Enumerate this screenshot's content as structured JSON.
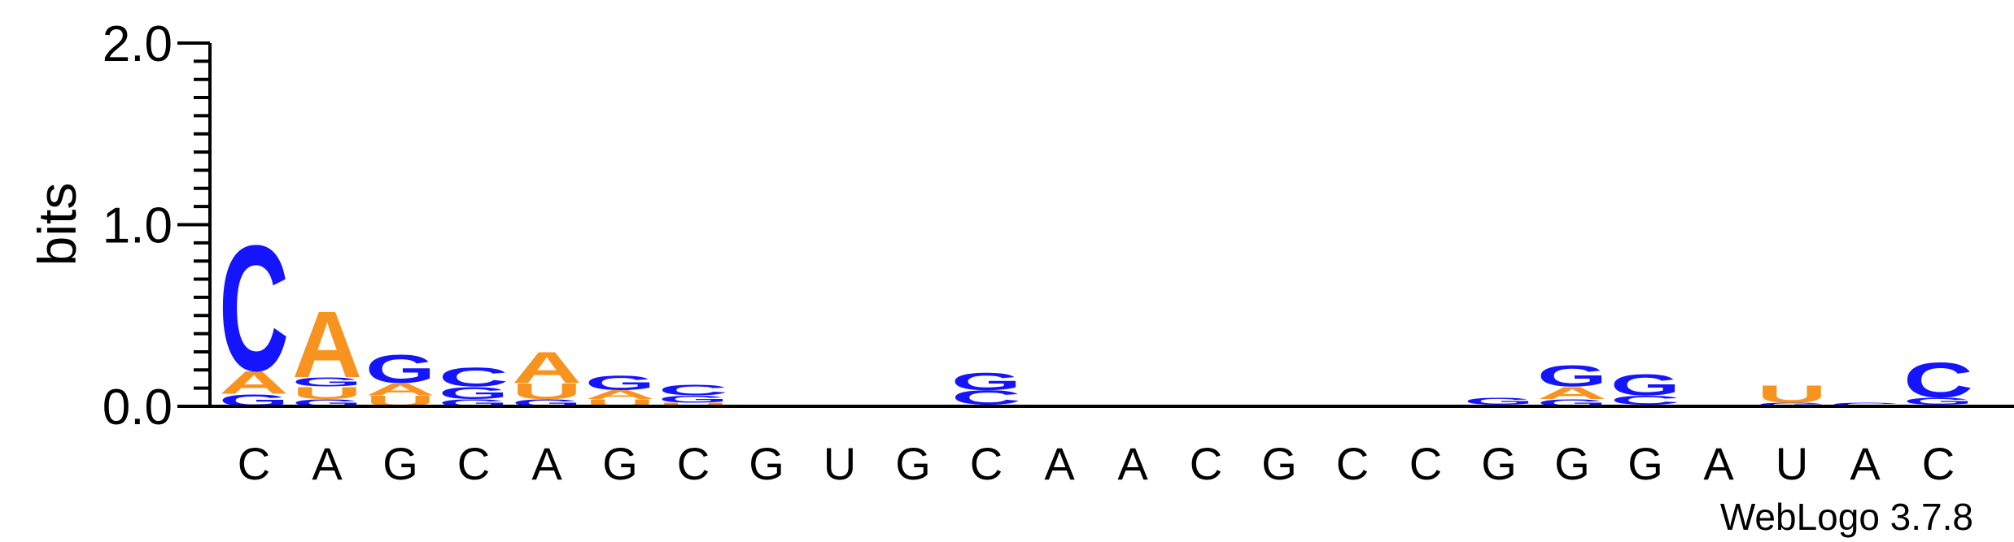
{
  "colors": {
    "A": "#f7931e",
    "C": "#1414ff",
    "G": "#1414ff",
    "U": "#f7931e",
    "axis": "#000000"
  },
  "credit": "WebLogo 3.7.8",
  "chart_data": {
    "type": "sequence-logo",
    "ylabel": "bits",
    "ylim": [
      0,
      2.0
    ],
    "yticks": [
      {
        "value": 0.0,
        "label": "0.0"
      },
      {
        "value": 1.0,
        "label": "1.0"
      },
      {
        "value": 2.0,
        "label": "2.0"
      }
    ],
    "minor_tick_step": 0.1,
    "positions": [
      {
        "label": "C",
        "stack": [
          {
            "letter": "G",
            "bits": 0.07
          },
          {
            "letter": "A",
            "bits": 0.13
          },
          {
            "letter": "C",
            "bits": 0.72
          }
        ]
      },
      {
        "label": "A",
        "stack": [
          {
            "letter": "G",
            "bits": 0.04
          },
          {
            "letter": "U",
            "bits": 0.07
          },
          {
            "letter": "G",
            "bits": 0.05
          },
          {
            "letter": "A",
            "bits": 0.38
          }
        ]
      },
      {
        "label": "G",
        "stack": [
          {
            "letter": "U",
            "bits": 0.06
          },
          {
            "letter": "A",
            "bits": 0.07
          },
          {
            "letter": "G",
            "bits": 0.16
          }
        ]
      },
      {
        "label": "C",
        "stack": [
          {
            "letter": "G",
            "bits": 0.04
          },
          {
            "letter": "G",
            "bits": 0.07
          },
          {
            "letter": "C",
            "bits": 0.11
          }
        ]
      },
      {
        "label": "A",
        "stack": [
          {
            "letter": "G",
            "bits": 0.04
          },
          {
            "letter": "U",
            "bits": 0.09
          },
          {
            "letter": "A",
            "bits": 0.18
          }
        ]
      },
      {
        "label": "G",
        "stack": [
          {
            "letter": "U",
            "bits": 0.04
          },
          {
            "letter": "A",
            "bits": 0.05
          },
          {
            "letter": "G",
            "bits": 0.08
          }
        ]
      },
      {
        "label": "C",
        "stack": [
          {
            "letter": "U",
            "bits": 0.02
          },
          {
            "letter": "G",
            "bits": 0.04
          },
          {
            "letter": "C",
            "bits": 0.06
          }
        ]
      },
      {
        "label": "G",
        "stack": [
          {
            "letter": "A",
            "bits": 0.01
          }
        ]
      },
      {
        "label": "U",
        "stack": [
          {
            "letter": "A",
            "bits": 0.01
          }
        ]
      },
      {
        "label": "G",
        "stack": [
          {
            "letter": "C",
            "bits": 0.01
          }
        ]
      },
      {
        "label": "C",
        "stack": [
          {
            "letter": "U",
            "bits": 0.01
          },
          {
            "letter": "C",
            "bits": 0.08
          },
          {
            "letter": "G",
            "bits": 0.1
          }
        ]
      },
      {
        "label": "A",
        "stack": [
          {
            "letter": "A",
            "bits": 0.01
          }
        ]
      },
      {
        "label": "A",
        "stack": [
          {
            "letter": "A",
            "bits": 0.01
          }
        ]
      },
      {
        "label": "C",
        "stack": [
          {
            "letter": "C",
            "bits": 0.01
          }
        ]
      },
      {
        "label": "G",
        "stack": []
      },
      {
        "label": "C",
        "stack": []
      },
      {
        "label": "C",
        "stack": []
      },
      {
        "label": "G",
        "stack": [
          {
            "letter": "U",
            "bits": 0.01
          },
          {
            "letter": "G",
            "bits": 0.04
          }
        ]
      },
      {
        "label": "G",
        "stack": [
          {
            "letter": "G",
            "bits": 0.04
          },
          {
            "letter": "A",
            "bits": 0.07
          },
          {
            "letter": "G",
            "bits": 0.12
          }
        ]
      },
      {
        "label": "G",
        "stack": [
          {
            "letter": "U",
            "bits": 0.01
          },
          {
            "letter": "C",
            "bits": 0.05
          },
          {
            "letter": "G",
            "bits": 0.12
          }
        ]
      },
      {
        "label": "A",
        "stack": []
      },
      {
        "label": "U",
        "stack": [
          {
            "letter": "G",
            "bits": 0.02
          },
          {
            "letter": "U",
            "bits": 0.1
          }
        ]
      },
      {
        "label": "A",
        "stack": [
          {
            "letter": "C",
            "bits": 0.02
          }
        ]
      },
      {
        "label": "C",
        "stack": [
          {
            "letter": "U",
            "bits": 0.01
          },
          {
            "letter": "G",
            "bits": 0.04
          },
          {
            "letter": "C",
            "bits": 0.2
          }
        ]
      }
    ]
  }
}
